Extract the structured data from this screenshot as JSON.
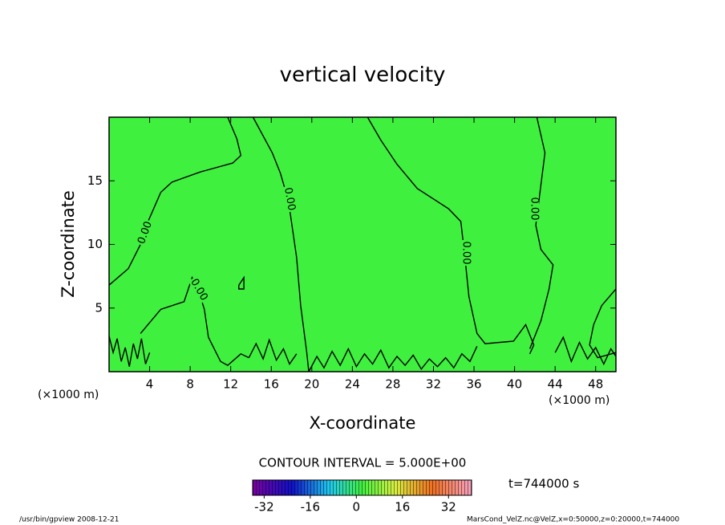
{
  "chart_data": {
    "type": "contour",
    "title": "vertical velocity",
    "x_label": "X-coordinate",
    "y_label": "Z-coordinate",
    "unit_label": "(×1000 m)",
    "contour_interval": "CONTOUR INTERVAL = 5.000E+00",
    "time_label": "t=744000 s",
    "footer_left": "/usr/bin/gpview   2008-12-21",
    "footer_right": "MarsCond_VelZ.nc@VelZ,x=0:50000,z=0:20000,t=744000",
    "fill_color": "#3ff03f",
    "line_color": "#000000",
    "xlim": [
      0,
      50
    ],
    "ylim": [
      0,
      20
    ],
    "xticks": [
      4,
      8,
      12,
      16,
      20,
      24,
      28,
      32,
      36,
      40,
      44,
      48
    ],
    "yticks": [
      5,
      10,
      15
    ],
    "clim": [
      -36,
      40
    ],
    "colorbar_ticks": [
      -32,
      -16,
      0,
      16,
      32
    ],
    "contour_level": {
      "value": 0,
      "label": "0.00"
    },
    "contours": [
      {
        "x": [
          0,
          1.9,
          3.1,
          3.9,
          5.1,
          6.2,
          9.0,
          12.2,
          13.0,
          12.6,
          11.7
        ],
        "z": [
          6.8,
          8.1,
          10.0,
          11.9,
          14.1,
          14.9,
          15.7,
          16.4,
          17.0,
          18.3,
          20
        ]
      },
      {
        "x": [
          14.2,
          16.1,
          16.9,
          17.7,
          18.5,
          18.9,
          19.5,
          19.7
        ],
        "z": [
          20,
          17.2,
          15.6,
          13.4,
          9.0,
          5.2,
          1.5,
          0
        ]
      },
      {
        "x": [
          25.5,
          26.8,
          28.4,
          30.4,
          33.5,
          34.7,
          35.1,
          35.5,
          36.3,
          37.1,
          39.9,
          41.1,
          41.9,
          41.5
        ],
        "z": [
          20,
          18.2,
          16.3,
          14.4,
          12.8,
          11.8,
          9.0,
          5.9,
          3.0,
          2.2,
          2.4,
          3.7,
          2.1,
          1.4
        ]
      },
      {
        "x": [
          42.2,
          43.0,
          42.6,
          42.1,
          42.6,
          43.8,
          43.4,
          42.6,
          41.5
        ],
        "z": [
          20,
          17.2,
          14.7,
          11.5,
          9.6,
          8.4,
          6.5,
          4.0,
          1.8
        ]
      },
      {
        "x": [
          50,
          48.6,
          47.8,
          47.4,
          48.2,
          50
        ],
        "z": [
          6.5,
          5.2,
          3.7,
          2.1,
          1.1,
          1.5
        ]
      },
      {
        "x": [
          3.1,
          5.1,
          7.4,
          8.2,
          9.0,
          9.4,
          9.8,
          11.0,
          11.7,
          13.0,
          13.8
        ],
        "z": [
          3.0,
          4.9,
          5.5,
          7.4,
          5.9,
          4.9,
          2.7,
          0.8,
          0.5,
          1.4,
          1.1
        ]
      },
      {
        "x": [
          12.8,
          13.3,
          13.3,
          12.8,
          12.8
        ],
        "z": [
          6.8,
          7.4,
          6.5,
          6.5,
          6.8
        ]
      },
      {
        "x": [
          0,
          0.4,
          0.8,
          1.2,
          1.6,
          2.0,
          2.4,
          2.8,
          3.2,
          3.6,
          4.0
        ],
        "z": [
          2.8,
          1.5,
          2.6,
          0.8,
          1.9,
          0.4,
          2.2,
          1.0,
          2.6,
          0.6,
          1.5
        ]
      },
      {
        "x": [
          13.8,
          14.5,
          15.2,
          15.8,
          16.5,
          17.2,
          17.8,
          18.5
        ],
        "z": [
          1.1,
          2.2,
          1.0,
          2.5,
          0.9,
          1.8,
          0.6,
          1.4
        ]
      },
      {
        "x": [
          19.7,
          20.5,
          21.2,
          22.0,
          22.8,
          23.6,
          24.4,
          25.2,
          26.0,
          26.8,
          27.6,
          28.4,
          29.2,
          30.0,
          30.8,
          31.6,
          32.4,
          33.2,
          34.0,
          34.8,
          35.6,
          36.3
        ],
        "z": [
          0,
          1.2,
          0.3,
          1.6,
          0.5,
          1.8,
          0.4,
          1.4,
          0.6,
          1.7,
          0.3,
          1.2,
          0.5,
          1.3,
          0.2,
          1.0,
          0.4,
          1.1,
          0.3,
          1.4,
          0.8,
          2.0
        ]
      },
      {
        "x": [
          44,
          44.8,
          45.6,
          46.4,
          47.2,
          48,
          48.8,
          49.5,
          50
        ],
        "z": [
          1.5,
          2.7,
          0.8,
          2.3,
          1.0,
          1.9,
          0.6,
          1.8,
          1.2
        ]
      }
    ]
  }
}
